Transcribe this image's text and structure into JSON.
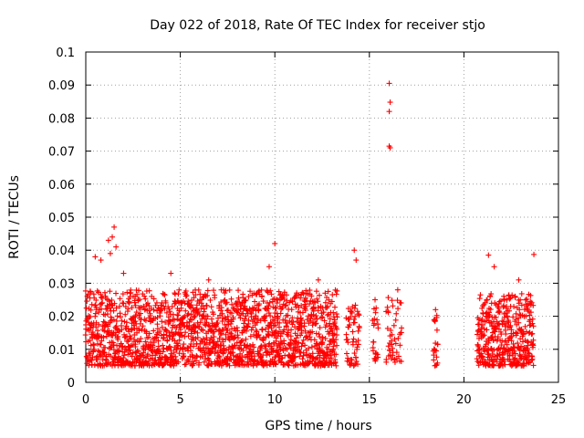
{
  "chart_data": {
    "type": "scatter",
    "title": "Day 022 of 2018, Rate Of TEC Index for receiver stjo",
    "xlabel": "GPS time / hours",
    "ylabel": "ROTI / TECUs",
    "xlim": [
      0,
      25
    ],
    "ylim": [
      0,
      0.1
    ],
    "grid": true,
    "marker": "+",
    "color": "#ff0000",
    "x_ticks": [
      0,
      5,
      10,
      15,
      20,
      25
    ],
    "x_tick_labels": [
      "0",
      "5",
      "10",
      "15",
      "20",
      "25"
    ],
    "y_ticks": [
      0,
      0.01,
      0.02,
      0.03,
      0.04,
      0.05,
      0.06,
      0.07,
      0.08,
      0.09,
      0.1
    ],
    "y_tick_labels": [
      "0",
      "0.01",
      "0.02",
      "0.03",
      "0.04",
      "0.05",
      "0.06",
      "0.07",
      "0.08",
      "0.09",
      "0.1"
    ],
    "series": [
      {
        "name": "ROTI",
        "description_note": "dense bands approximated",
        "segments": [
          {
            "x_start": 0.0,
            "x_end": 13.3,
            "step": 0.03,
            "y_min": 0.005,
            "y_max": 0.028
          },
          {
            "x_start": 13.8,
            "x_end": 14.5,
            "step": 0.05,
            "y_min": 0.005,
            "y_max": 0.025
          },
          {
            "x_start": 15.2,
            "x_end": 15.5,
            "step": 0.06,
            "y_min": 0.006,
            "y_max": 0.024
          },
          {
            "x_start": 15.9,
            "x_end": 16.7,
            "step": 0.07,
            "y_min": 0.006,
            "y_max": 0.026
          },
          {
            "x_start": 18.4,
            "x_end": 18.6,
            "step": 0.05,
            "y_min": 0.005,
            "y_max": 0.021
          },
          {
            "x_start": 20.7,
            "x_end": 23.7,
            "step": 0.03,
            "y_min": 0.005,
            "y_max": 0.027
          }
        ],
        "points": [
          [
            1.2,
            0.043
          ],
          [
            1.5,
            0.047
          ],
          [
            1.4,
            0.044
          ],
          [
            1.6,
            0.041
          ],
          [
            1.3,
            0.039
          ],
          [
            0.5,
            0.038
          ],
          [
            0.8,
            0.037
          ],
          [
            2.0,
            0.033
          ],
          [
            4.5,
            0.033
          ],
          [
            6.5,
            0.031
          ],
          [
            10.0,
            0.042
          ],
          [
            9.7,
            0.035
          ],
          [
            12.3,
            0.031
          ],
          [
            14.2,
            0.04
          ],
          [
            14.3,
            0.037
          ],
          [
            16.05,
            0.0905
          ],
          [
            16.1,
            0.0848
          ],
          [
            16.05,
            0.082
          ],
          [
            16.05,
            0.0715
          ],
          [
            16.1,
            0.071
          ],
          [
            21.3,
            0.0385
          ],
          [
            21.6,
            0.035
          ],
          [
            23.7,
            0.0387
          ],
          [
            22.9,
            0.031
          ],
          [
            16.5,
            0.028
          ],
          [
            15.3,
            0.025
          ],
          [
            18.5,
            0.022
          ]
        ]
      }
    ]
  }
}
